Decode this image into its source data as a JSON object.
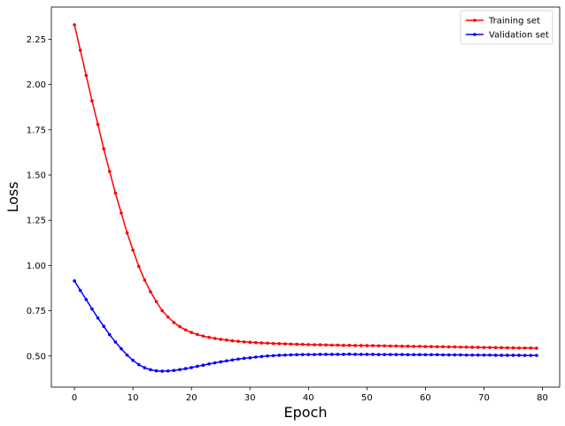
{
  "chart_data": {
    "type": "line",
    "xlabel": "Epoch",
    "ylabel": "Loss",
    "xlim": [
      -3.95,
      82.95
    ],
    "ylim": [
      0.328,
      2.428
    ],
    "xticks": [
      0,
      10,
      20,
      30,
      40,
      50,
      60,
      70,
      80
    ],
    "yticks": [
      0.5,
      0.75,
      1.0,
      1.25,
      1.5,
      1.75,
      2.0,
      2.25
    ],
    "ytick_labels": [
      "0.50",
      "0.75",
      "1.00",
      "1.25",
      "1.50",
      "1.75",
      "2.00",
      "2.25"
    ],
    "grid": false,
    "legend_position": "top-right",
    "x": [
      0,
      1,
      2,
      3,
      4,
      5,
      6,
      7,
      8,
      9,
      10,
      11,
      12,
      13,
      14,
      15,
      16,
      17,
      18,
      19,
      20,
      21,
      22,
      23,
      24,
      25,
      26,
      27,
      28,
      29,
      30,
      31,
      32,
      33,
      34,
      35,
      36,
      37,
      38,
      39,
      40,
      41,
      42,
      43,
      44,
      45,
      46,
      47,
      48,
      49,
      50,
      51,
      52,
      53,
      54,
      55,
      56,
      57,
      58,
      59,
      60,
      61,
      62,
      63,
      64,
      65,
      66,
      67,
      68,
      69,
      70,
      71,
      72,
      73,
      74,
      75,
      76,
      77,
      78,
      79
    ],
    "series": [
      {
        "name": "Training set",
        "color": "#ff0000",
        "values": [
          2.33,
          2.19,
          2.05,
          1.91,
          1.78,
          1.645,
          1.52,
          1.4,
          1.29,
          1.18,
          1.085,
          0.995,
          0.92,
          0.855,
          0.8,
          0.75,
          0.715,
          0.685,
          0.662,
          0.644,
          0.63,
          0.619,
          0.61,
          0.603,
          0.597,
          0.592,
          0.588,
          0.584,
          0.581,
          0.578,
          0.576,
          0.574,
          0.572,
          0.571,
          0.569,
          0.568,
          0.567,
          0.566,
          0.565,
          0.564,
          0.563,
          0.562,
          0.562,
          0.561,
          0.56,
          0.56,
          0.559,
          0.559,
          0.558,
          0.558,
          0.557,
          0.557,
          0.556,
          0.556,
          0.555,
          0.555,
          0.554,
          0.554,
          0.553,
          0.553,
          0.552,
          0.552,
          0.551,
          0.551,
          0.55,
          0.55,
          0.549,
          0.549,
          0.548,
          0.548,
          0.547,
          0.547,
          0.546,
          0.546,
          0.545,
          0.545,
          0.544,
          0.544,
          0.544,
          0.543
        ]
      },
      {
        "name": "Validation set",
        "color": "#0000ff",
        "values": [
          0.915,
          0.862,
          0.812,
          0.76,
          0.71,
          0.664,
          0.618,
          0.577,
          0.54,
          0.505,
          0.476,
          0.452,
          0.435,
          0.424,
          0.418,
          0.416,
          0.417,
          0.42,
          0.425,
          0.43,
          0.436,
          0.443,
          0.449,
          0.456,
          0.462,
          0.468,
          0.473,
          0.478,
          0.483,
          0.487,
          0.49,
          0.494,
          0.497,
          0.5,
          0.502,
          0.504,
          0.505,
          0.506,
          0.507,
          0.508,
          0.508,
          0.508,
          0.509,
          0.509,
          0.509,
          0.509,
          0.509,
          0.51,
          0.509,
          0.509,
          0.509,
          0.509,
          0.508,
          0.508,
          0.508,
          0.508,
          0.508,
          0.507,
          0.507,
          0.507,
          0.507,
          0.507,
          0.507,
          0.506,
          0.506,
          0.506,
          0.506,
          0.505,
          0.505,
          0.505,
          0.505,
          0.505,
          0.504,
          0.504,
          0.504,
          0.504,
          0.504,
          0.503,
          0.503,
          0.503
        ]
      }
    ]
  }
}
